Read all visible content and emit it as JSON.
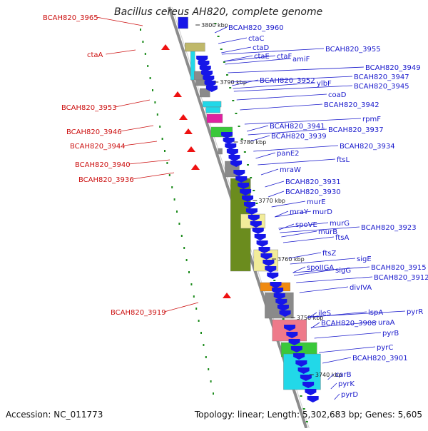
{
  "title": "Bacillus cereus AH820, complete genome",
  "footer": {
    "accession": "Accession: NC_011773",
    "summary": "Topology: linear; Length: 5,302,683 bp; Genes: 5,605"
  },
  "colors": {
    "backbone": "#8c8c8c",
    "gene_blue": "#1616e8",
    "label_blue": "#1a1acc",
    "label_red": "#cc1111",
    "gene_red": "#ee1111",
    "dot_green": "#1a8a1a",
    "olive": "#6b8c1e",
    "cyan": "#22d8e8",
    "khaki": "#bfb86a",
    "pale_yellow": "#f2ec9a",
    "orange": "#f08a10",
    "pink": "#ee7a8a",
    "magenta": "#e020a0",
    "green": "#3ac83a",
    "gray": "#8a8a8a"
  },
  "scale_labels": [
    "3800 kbp",
    "3790 kbp",
    "3780 kbp",
    "3770 kbp",
    "3760 kbp",
    "3750 kbp",
    "3740 kbp"
  ],
  "right_labels": [
    "BCAH820_3960",
    "ctaC",
    "ctaD",
    "ctaE",
    "ctaF",
    "BCAH820_3955",
    "amiF",
    "BCAH820_3952",
    "BCAH820_3949",
    "ylbF",
    "BCAH820_3947",
    "BCAH820_3945",
    "coaD",
    "BCAH820_3942",
    "rpmF",
    "BCAH820_3941",
    "BCAH820_3937",
    "BCAH820_3939",
    "BCAH820_3934",
    "panE2",
    "ftsL",
    "mraW",
    "BCAH820_3931",
    "BCAH820_3930",
    "murE",
    "mraY",
    "murD",
    "spoVE",
    "murG",
    "BCAH820_3923",
    "murB",
    "ftsA",
    "ftsZ",
    "sigE",
    "spoIIGA",
    "sigG",
    "BCAH820_3915",
    "BCAH820_3912",
    "divIVA",
    "ileS",
    "lspA",
    "pyrR",
    "BCAH820_3908",
    "uraA",
    "pyrB",
    "pyrC",
    "BCAH820_3901",
    "carB",
    "pyrK",
    "pyrD"
  ],
  "left_labels": [
    "BCAH820_3965",
    "ctaA",
    "BCAH820_3953",
    "BCAH820_3946",
    "BCAH820_3944",
    "BCAH820_3940",
    "BCAH820_3936",
    "BCAH820_3919"
  ]
}
